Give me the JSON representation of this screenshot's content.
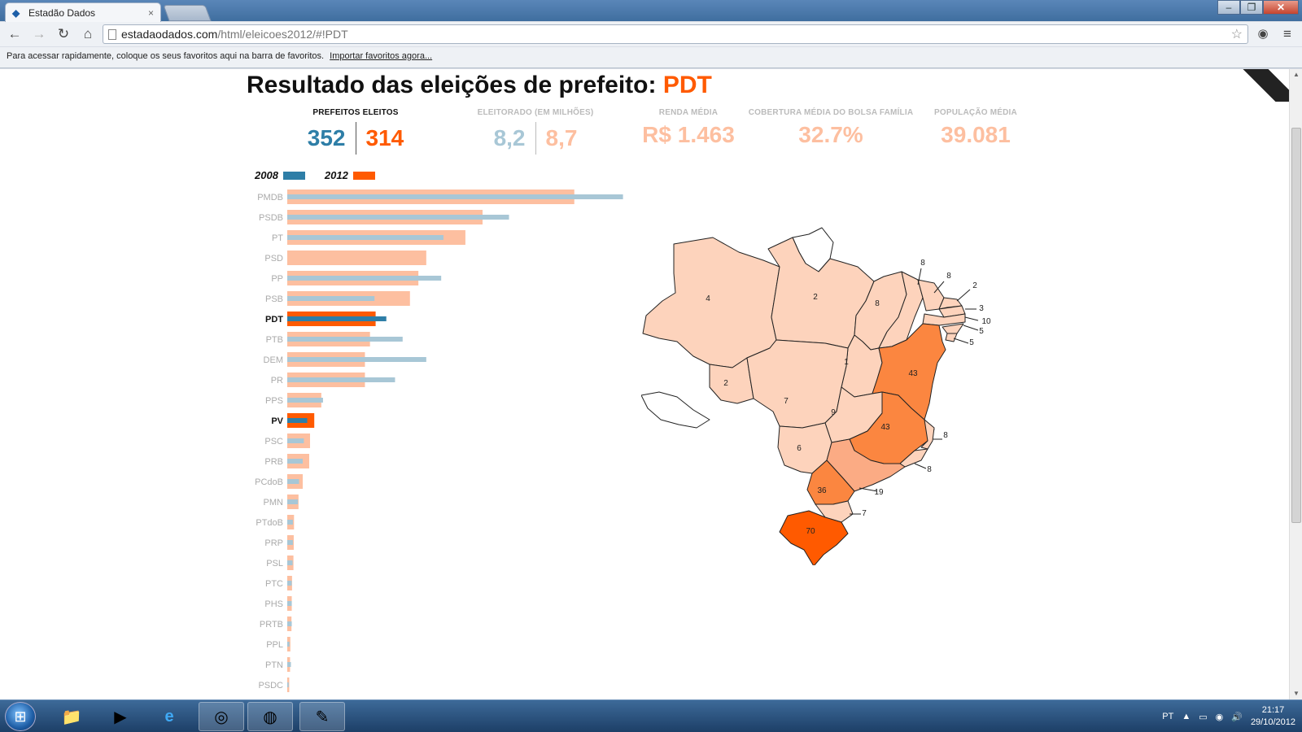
{
  "browser": {
    "tab_title": "Estadão Dados",
    "tab_close": "×",
    "url_domain": "estadaodados.com",
    "url_path": "/html/eleicoes2012/#!PDT",
    "bookmarks_msg": "Para acessar rapidamente, coloque os seus favoritos aqui na barra de favoritos.",
    "bookmarks_import": "Importar favoritos agora..."
  },
  "page": {
    "title_prefix": "Resultado das eleições de prefeito: ",
    "party": "PDT"
  },
  "stats": {
    "prefeitos_label": "PREFEITOS ELEITOS",
    "prefeitos_2008": "352",
    "prefeitos_2012": "314",
    "eleitorado_label": "ELEITORADO (EM MILHÕES)",
    "eleitorado_2008": "8,2",
    "eleitorado_2012": "8,7",
    "renda_label": "RENDA MÉDIA",
    "renda_value": "R$ 1.463",
    "bolsa_label": "COBERTURA MÉDIA DO BOLSA FAMÍLIA",
    "bolsa_value": "32.7%",
    "populacao_label": "POPULAÇÃO MÉDIA",
    "populacao_value": "39.081"
  },
  "legend": {
    "year_2008": "2008",
    "year_2012": "2012"
  },
  "colors": {
    "accent_2012": "#ff5a00",
    "accent_2008": "#2e7ea7",
    "light_2012": "#fdbfa0",
    "light_2008": "#a8c7d6",
    "map_low": "#fdd3bc",
    "map_mid": "#fbab84",
    "map_high": "#fb8640",
    "map_top": "#ff5a00"
  },
  "chart_data": {
    "type": "bar",
    "orientation": "horizontal",
    "series": [
      {
        "name": "2008",
        "values": [
          1193,
          788,
          555,
          0,
          547,
          310,
          352,
          410,
          494,
          383,
          127,
          71,
          59,
          55,
          42,
          38,
          20,
          20,
          19,
          16,
          16,
          16,
          8,
          13,
          5
        ]
      },
      {
        "name": "2012",
        "values": [
          1020,
          694,
          633,
          494,
          466,
          436,
          314,
          294,
          276,
          276,
          121,
          96,
          81,
          78,
          55,
          40,
          24,
          23,
          22,
          17,
          16,
          15,
          11,
          10,
          7
        ]
      }
    ],
    "categories": [
      "PMDB",
      "PSDB",
      "PT",
      "PSD",
      "PP",
      "PSB",
      "PDT",
      "PTB",
      "DEM",
      "PR",
      "PPS",
      "PV",
      "PSC",
      "PRB",
      "PCdoB",
      "PMN",
      "PTdoB",
      "PRP",
      "PSL",
      "PTC",
      "PHS",
      "PRTB",
      "PPL",
      "PTN",
      "PSDC"
    ],
    "highlighted": [
      "PDT",
      "PV"
    ],
    "xlim": [
      0,
      1200
    ]
  },
  "map_data": {
    "title": "",
    "states": [
      {
        "uf": "AM",
        "value": "4"
      },
      {
        "uf": "PA",
        "value": "2"
      },
      {
        "uf": "MA",
        "value": "8"
      },
      {
        "uf": "PI",
        "value": "8"
      },
      {
        "uf": "CE",
        "value": "8"
      },
      {
        "uf": "RN",
        "value": "2"
      },
      {
        "uf": "PB",
        "value": "3"
      },
      {
        "uf": "PE",
        "value": "10"
      },
      {
        "uf": "AL",
        "value": "5"
      },
      {
        "uf": "SE",
        "value": "5"
      },
      {
        "uf": "TO",
        "value": "1"
      },
      {
        "uf": "BA",
        "value": "43"
      },
      {
        "uf": "MG",
        "value": "43"
      },
      {
        "uf": "ES",
        "value": "8"
      },
      {
        "uf": "RJ",
        "value": "8"
      },
      {
        "uf": "SP",
        "value": "19"
      },
      {
        "uf": "PR",
        "value": "36"
      },
      {
        "uf": "SC",
        "value": "7"
      },
      {
        "uf": "RS",
        "value": "70"
      },
      {
        "uf": "RO",
        "value": "2"
      },
      {
        "uf": "MT",
        "value": "7"
      },
      {
        "uf": "GO",
        "value": "9"
      },
      {
        "uf": "MS",
        "value": "6"
      }
    ]
  },
  "taskbar": {
    "lang": "PT",
    "time": "21:17",
    "date": "29/10/2012"
  }
}
